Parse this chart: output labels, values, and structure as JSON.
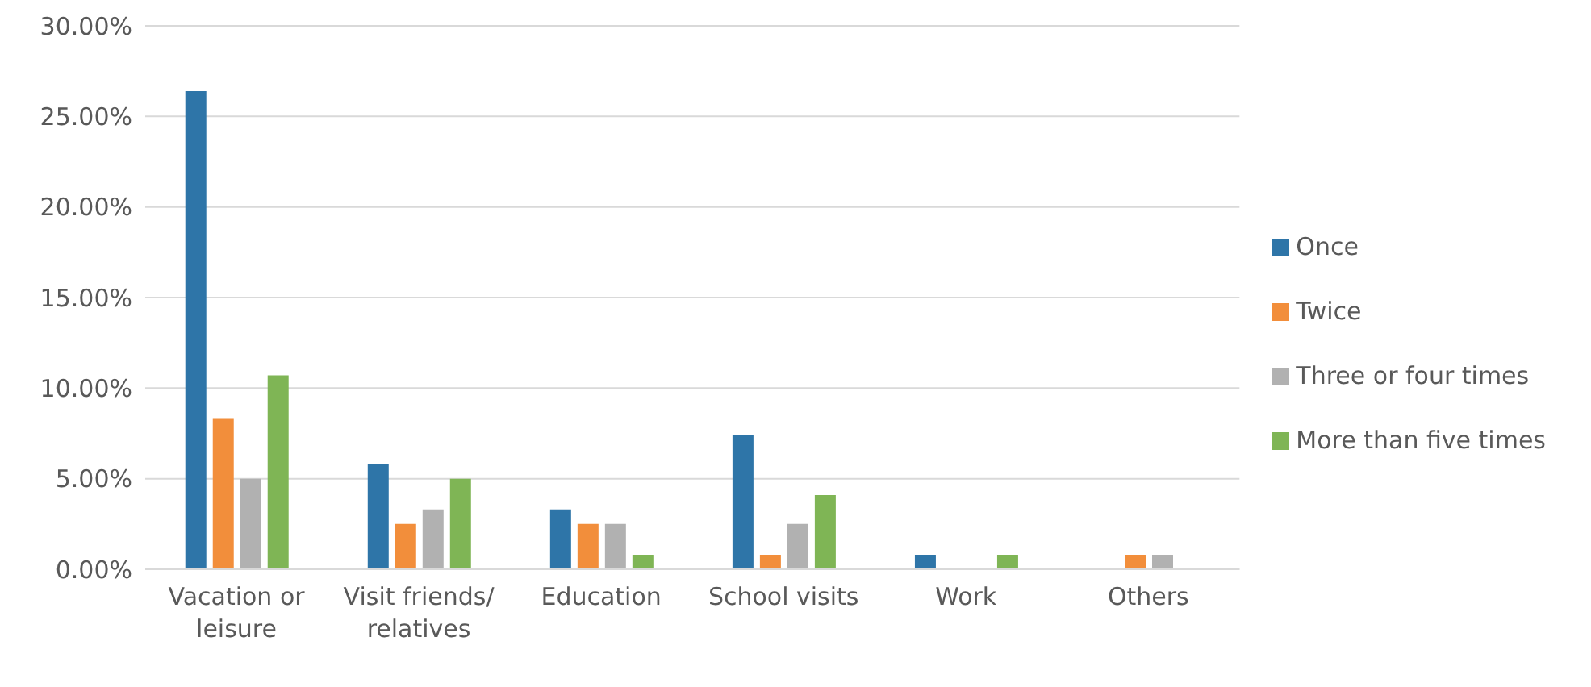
{
  "chart_data": {
    "type": "bar",
    "categories": [
      "Vacation or leisure",
      "Visit friends/ relatives",
      "Education",
      "School visits",
      "Work",
      "Others"
    ],
    "series": [
      {
        "name": "Once",
        "color": "#2e75a8",
        "values": [
          26.4,
          5.8,
          3.3,
          7.4,
          0.8,
          0
        ]
      },
      {
        "name": "Twice",
        "color": "#f28e3b",
        "values": [
          8.3,
          2.5,
          2.5,
          0.8,
          0,
          0.8
        ]
      },
      {
        "name": "Three or four times",
        "color": "#b1b1b1",
        "values": [
          5.0,
          3.3,
          2.5,
          2.5,
          0,
          0.8
        ]
      },
      {
        "name": "More than five times",
        "color": "#7fb555",
        "values": [
          10.7,
          5.0,
          0.8,
          4.1,
          0.8,
          0
        ]
      }
    ],
    "ylim": [
      0,
      30
    ],
    "yticks": [
      {
        "value": 0,
        "label": "0.00%"
      },
      {
        "value": 5,
        "label": "5.00%"
      },
      {
        "value": 10,
        "label": "10.00%"
      },
      {
        "value": 15,
        "label": "15.00%"
      },
      {
        "value": 20,
        "label": "20.00%"
      },
      {
        "value": 25,
        "label": "25.00%"
      },
      {
        "value": 30,
        "label": "30.00%"
      }
    ],
    "grid": "y",
    "legend": "right"
  }
}
